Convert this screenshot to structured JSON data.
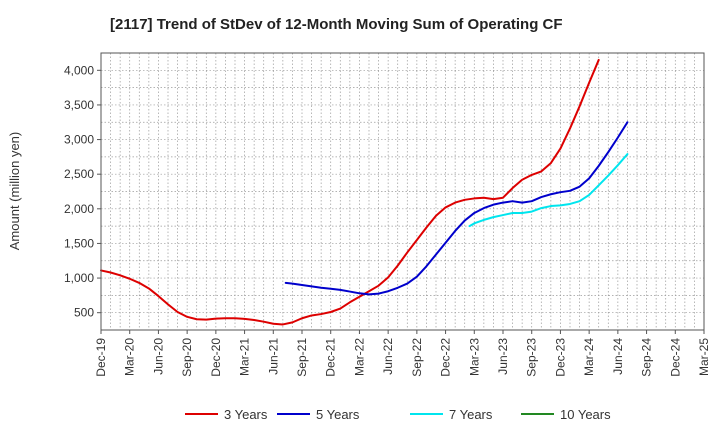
{
  "chart_data": {
    "type": "line",
    "title": "[2117]  Trend of StDev of 12-Month Moving Sum of Operating CF",
    "xlabel": "",
    "ylabel": "Amount (million yen)",
    "ylim": [
      250,
      4250
    ],
    "yticks": [
      500,
      1000,
      1500,
      2000,
      2500,
      3000,
      3500,
      4000
    ],
    "ytick_labels": [
      "500",
      "1,000",
      "1,500",
      "2,000",
      "2,500",
      "3,000",
      "3,500",
      "4,000"
    ],
    "x_categories": [
      "Dec-19",
      "Mar-20",
      "Jun-20",
      "Sep-20",
      "Dec-20",
      "Mar-21",
      "Jun-21",
      "Sep-21",
      "Dec-21",
      "Mar-22",
      "Jun-22",
      "Sep-22",
      "Dec-22",
      "Mar-23",
      "Jun-23",
      "Sep-23",
      "Dec-23",
      "Mar-24",
      "Jun-24",
      "Sep-24",
      "Dec-24",
      "Mar-25"
    ],
    "grid": true,
    "legend_position": "bottom",
    "series": [
      {
        "name": "3 Years",
        "color": "#dd0000",
        "points": [
          [
            0,
            1110
          ],
          [
            1,
            1080
          ],
          [
            2,
            1040
          ],
          [
            3,
            990
          ],
          [
            4,
            930
          ],
          [
            5,
            850
          ],
          [
            6,
            740
          ],
          [
            7,
            620
          ],
          [
            8,
            510
          ],
          [
            9,
            440
          ],
          [
            10,
            405
          ],
          [
            11,
            400
          ],
          [
            12,
            415
          ],
          [
            13,
            420
          ],
          [
            14,
            420
          ],
          [
            15,
            410
          ],
          [
            16,
            395
          ],
          [
            17,
            370
          ],
          [
            18,
            340
          ],
          [
            19,
            330
          ],
          [
            20,
            360
          ],
          [
            21,
            420
          ],
          [
            22,
            460
          ],
          [
            23,
            480
          ],
          [
            24,
            510
          ],
          [
            25,
            560
          ],
          [
            26,
            650
          ],
          [
            27,
            730
          ],
          [
            28,
            810
          ],
          [
            29,
            890
          ],
          [
            30,
            1010
          ],
          [
            31,
            1180
          ],
          [
            32,
            1370
          ],
          [
            33,
            1550
          ],
          [
            34,
            1730
          ],
          [
            35,
            1900
          ],
          [
            36,
            2020
          ],
          [
            37,
            2090
          ],
          [
            38,
            2130
          ],
          [
            39,
            2150
          ],
          [
            40,
            2160
          ],
          [
            41,
            2140
          ],
          [
            42,
            2160
          ],
          [
            43,
            2300
          ],
          [
            44,
            2420
          ],
          [
            45,
            2490
          ],
          [
            46,
            2540
          ],
          [
            47,
            2660
          ],
          [
            48,
            2870
          ],
          [
            49,
            3160
          ],
          [
            50,
            3480
          ],
          [
            51,
            3820
          ],
          [
            52,
            4150
          ]
        ]
      },
      {
        "name": "5 Years",
        "color": "#0000cc",
        "points": [
          [
            19.3,
            930
          ],
          [
            20,
            920
          ],
          [
            21,
            900
          ],
          [
            22,
            880
          ],
          [
            23,
            860
          ],
          [
            24,
            845
          ],
          [
            25,
            830
          ],
          [
            26,
            805
          ],
          [
            27,
            780
          ],
          [
            28,
            765
          ],
          [
            29,
            775
          ],
          [
            30,
            810
          ],
          [
            31,
            860
          ],
          [
            32,
            920
          ],
          [
            33,
            1020
          ],
          [
            34,
            1170
          ],
          [
            35,
            1340
          ],
          [
            36,
            1510
          ],
          [
            37,
            1680
          ],
          [
            38,
            1830
          ],
          [
            39,
            1940
          ],
          [
            40,
            2010
          ],
          [
            41,
            2060
          ],
          [
            42,
            2090
          ],
          [
            43,
            2110
          ],
          [
            44,
            2090
          ],
          [
            45,
            2110
          ],
          [
            46,
            2170
          ],
          [
            47,
            2210
          ],
          [
            48,
            2240
          ],
          [
            49,
            2260
          ],
          [
            50,
            2320
          ],
          [
            51,
            2440
          ],
          [
            52,
            2620
          ],
          [
            53,
            2820
          ],
          [
            54,
            3030
          ],
          [
            55,
            3250
          ]
        ]
      },
      {
        "name": "7 Years",
        "color": "#00e5ee",
        "points": [
          [
            38.5,
            1750
          ],
          [
            39,
            1790
          ],
          [
            40,
            1840
          ],
          [
            41,
            1880
          ],
          [
            42,
            1910
          ],
          [
            43,
            1940
          ],
          [
            44,
            1940
          ],
          [
            45,
            1960
          ],
          [
            46,
            2010
          ],
          [
            47,
            2040
          ],
          [
            48,
            2050
          ],
          [
            49,
            2070
          ],
          [
            50,
            2110
          ],
          [
            51,
            2200
          ],
          [
            52,
            2340
          ],
          [
            53,
            2480
          ],
          [
            54,
            2630
          ],
          [
            55,
            2790
          ]
        ]
      },
      {
        "name": "10 Years",
        "color": "#228822",
        "points": []
      }
    ]
  }
}
